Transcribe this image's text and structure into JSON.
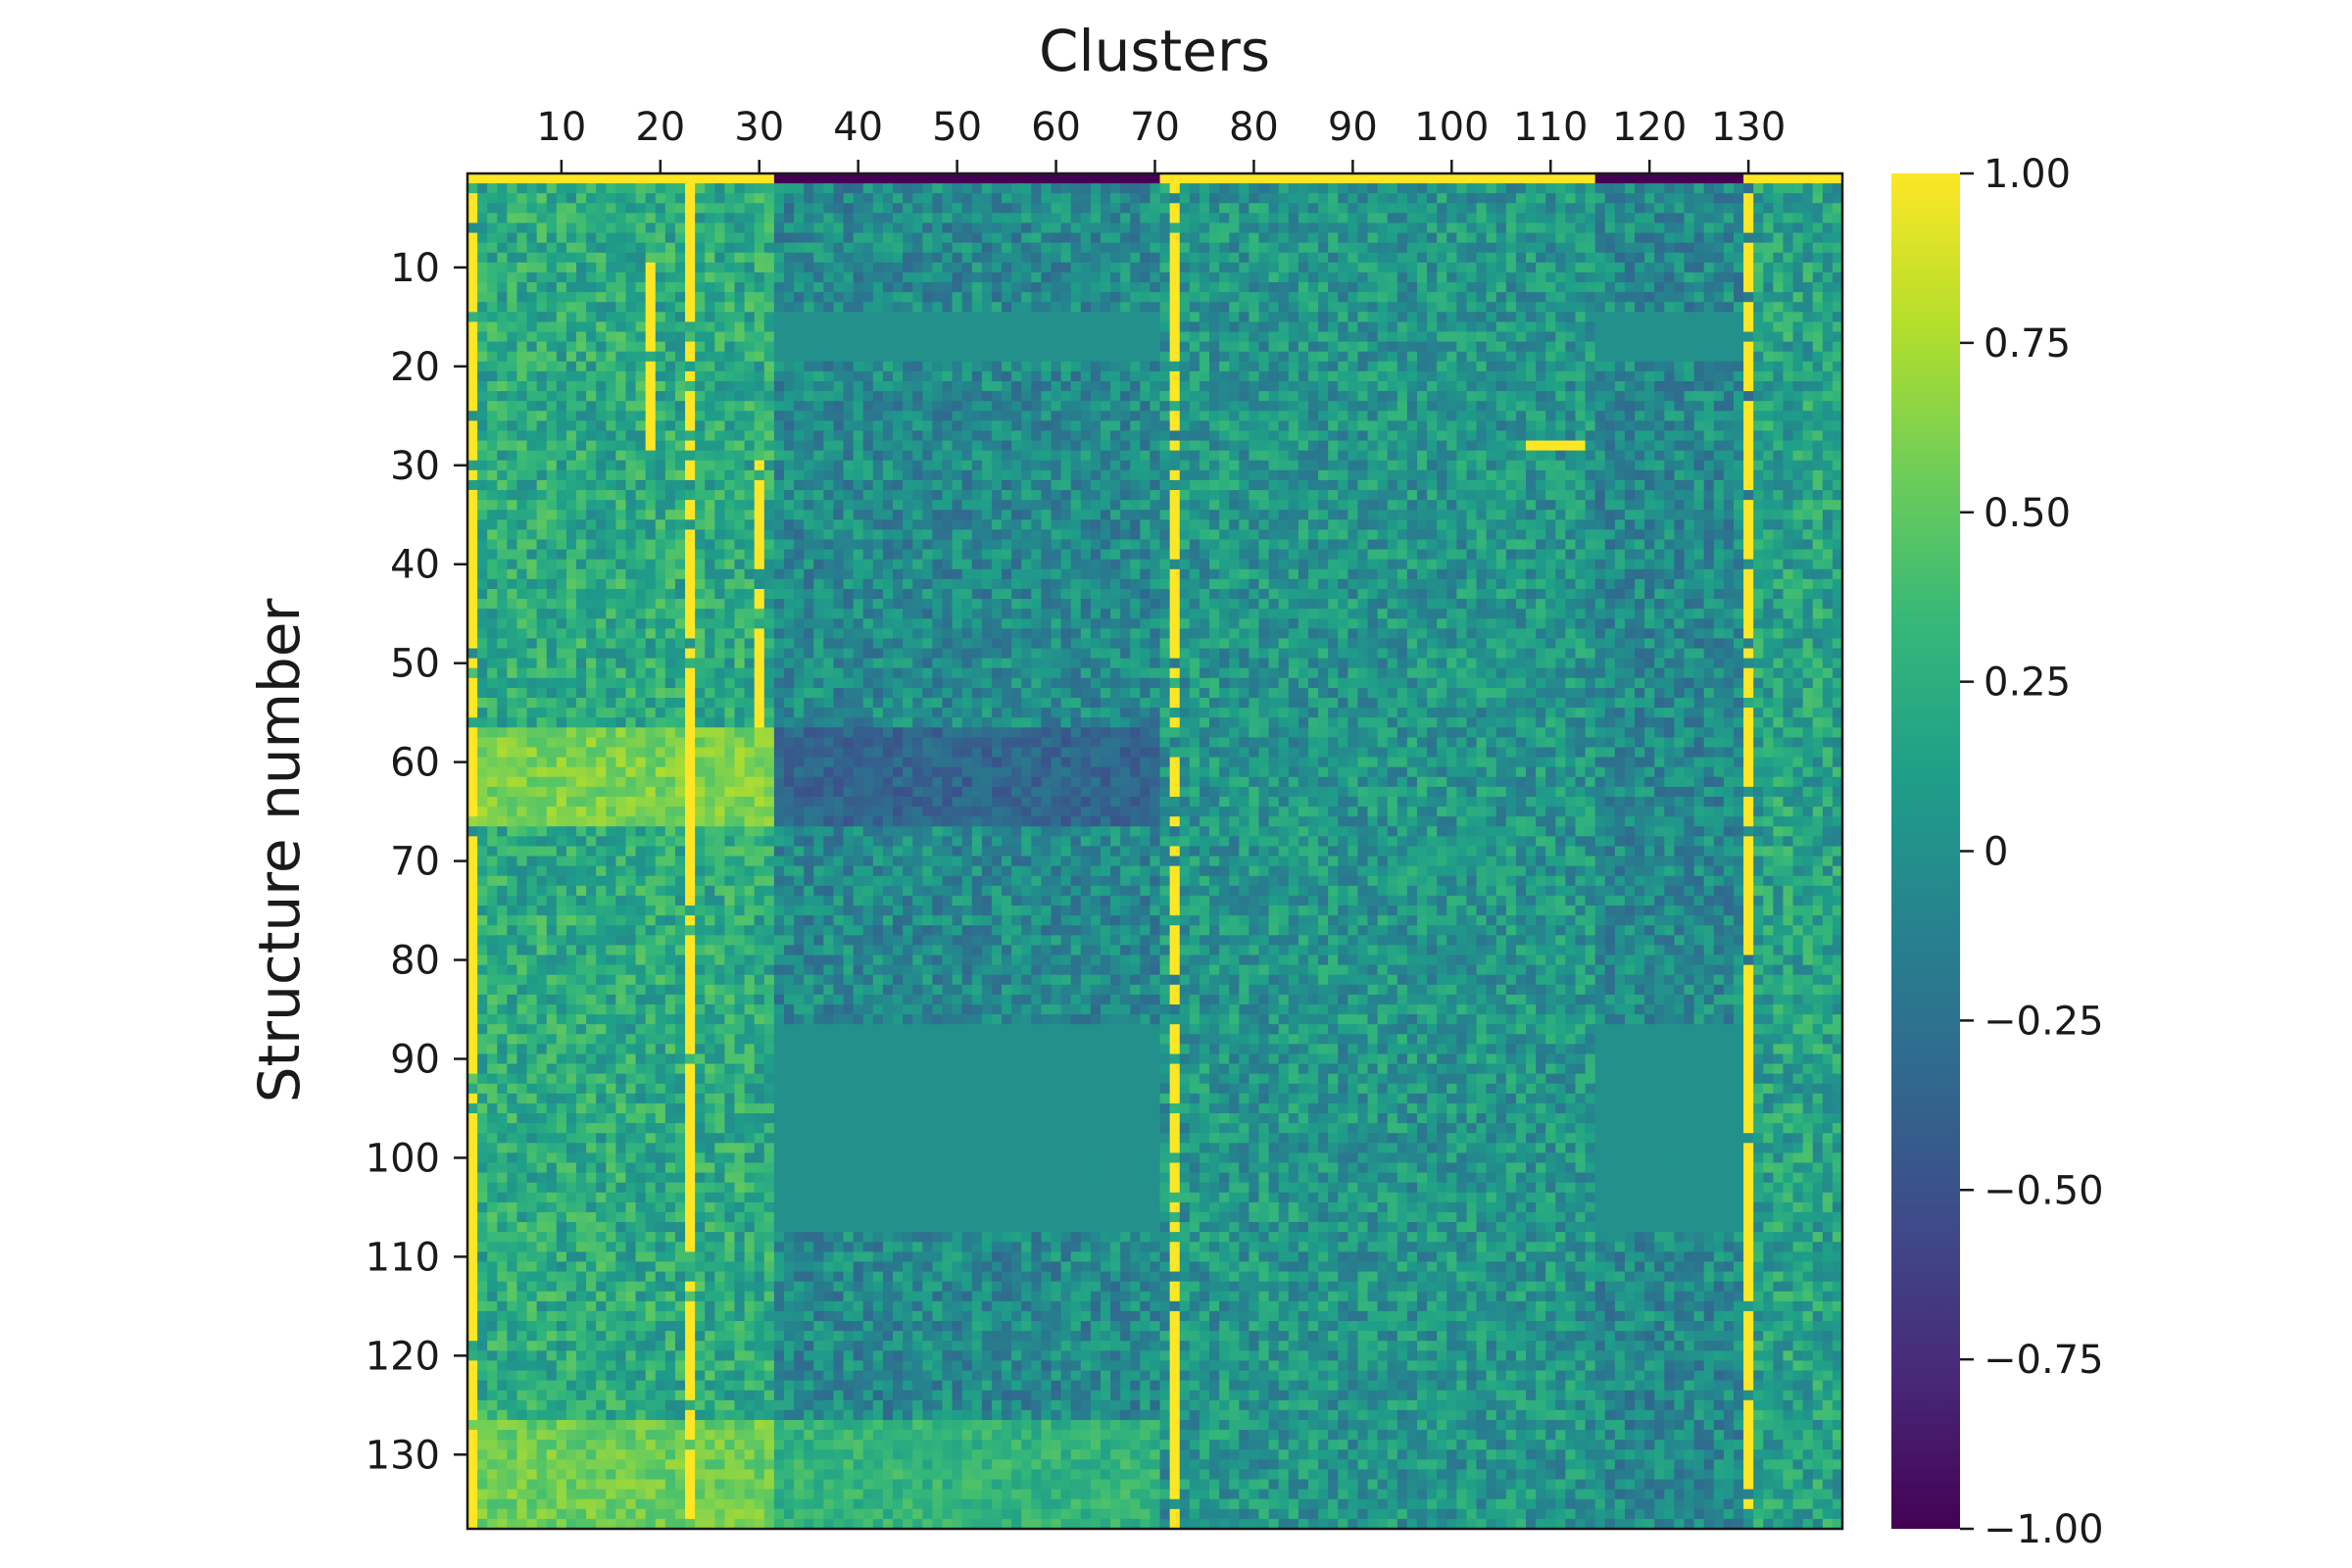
{
  "chart_data": {
    "type": "heatmap",
    "title": "",
    "xlabel": "Clusters",
    "ylabel": "Structure number",
    "xlim": [
      0.5,
      139.5
    ],
    "ylim": [
      0.5,
      137.5
    ],
    "x_ticks": [
      10,
      20,
      30,
      40,
      50,
      60,
      70,
      80,
      90,
      100,
      110,
      120,
      130
    ],
    "y_ticks": [
      10,
      20,
      30,
      40,
      50,
      60,
      70,
      80,
      90,
      100,
      110,
      120,
      130
    ],
    "colorbar": {
      "range": [
        -1.0,
        1.0
      ],
      "colormap": "viridis",
      "ticks": [
        {
          "value": 1.0,
          "label": "1.00"
        },
        {
          "value": 0.75,
          "label": "0.75"
        },
        {
          "value": 0.5,
          "label": "0.50"
        },
        {
          "value": 0.25,
          "label": "0.25"
        },
        {
          "value": 0.0,
          "label": "0"
        },
        {
          "value": -0.25,
          "label": "−0.25"
        },
        {
          "value": -0.5,
          "label": "−0.50"
        },
        {
          "value": -0.75,
          "label": "−0.75"
        },
        {
          "value": -1.0,
          "label": "−1.00"
        }
      ]
    },
    "n_rows": 137,
    "n_cols": 139,
    "column_groups": [
      {
        "cols": [
          1,
          31
        ],
        "row1_value": 1.0,
        "base": 0.22
      },
      {
        "cols": [
          32,
          70
        ],
        "row1_value": -1.0,
        "base": -0.05
      },
      {
        "cols": [
          71,
          114
        ],
        "row1_value": 1.0,
        "base": 0.05
      },
      {
        "cols": [
          115,
          130
        ],
        "row1_value": -1.0,
        "base": -0.05
      },
      {
        "cols": [
          131,
          139
        ],
        "row1_value": 1.0,
        "base": 0.15
      }
    ],
    "uniform_blocks": [
      {
        "rows": [
          15,
          19
        ],
        "cols": [
          32,
          70
        ],
        "value": 0.0
      },
      {
        "rows": [
          15,
          19
        ],
        "cols": [
          115,
          130
        ],
        "value": 0.0
      },
      {
        "rows": [
          87,
          107
        ],
        "cols": [
          32,
          70
        ],
        "value": 0.0
      },
      {
        "rows": [
          87,
          107
        ],
        "cols": [
          115,
          130
        ],
        "value": 0.0
      }
    ],
    "row_bands": [
      {
        "rows": [
          57,
          66
        ],
        "cols": [
          1,
          31
        ],
        "value": 0.6
      },
      {
        "rows": [
          57,
          66
        ],
        "cols": [
          32,
          70
        ],
        "value": -0.35
      },
      {
        "rows": [
          127,
          137
        ],
        "cols": [
          1,
          31
        ],
        "value": 0.55
      },
      {
        "rows": [
          127,
          137
        ],
        "cols": [
          32,
          70
        ],
        "value": 0.3
      }
    ],
    "saturated_columns": [
      {
        "col": 1,
        "rows": [
          1,
          137
        ],
        "value": 1.0
      },
      {
        "col": 30,
        "rows": [
          29,
          56
        ],
        "value": 1.0
      },
      {
        "col": 19,
        "rows": [
          10,
          28
        ],
        "value": 1.0
      },
      {
        "col": 23,
        "rows": [
          1,
          137
        ],
        "value": 1.0
      },
      {
        "col": 72,
        "rows": [
          1,
          137
        ],
        "value": 1.0
      },
      {
        "col": 130,
        "rows": [
          1,
          137
        ],
        "value": 1.0
      }
    ],
    "saturated_rows": [
      {
        "row": 1,
        "cols": [
          1,
          31
        ],
        "value": 1.0
      },
      {
        "row": 1,
        "cols": [
          71,
          114
        ],
        "value": 1.0
      },
      {
        "row": 1,
        "cols": [
          131,
          139
        ],
        "value": 1.0
      },
      {
        "row": 28,
        "cols": [
          108,
          113
        ],
        "value": 1.0
      }
    ]
  }
}
